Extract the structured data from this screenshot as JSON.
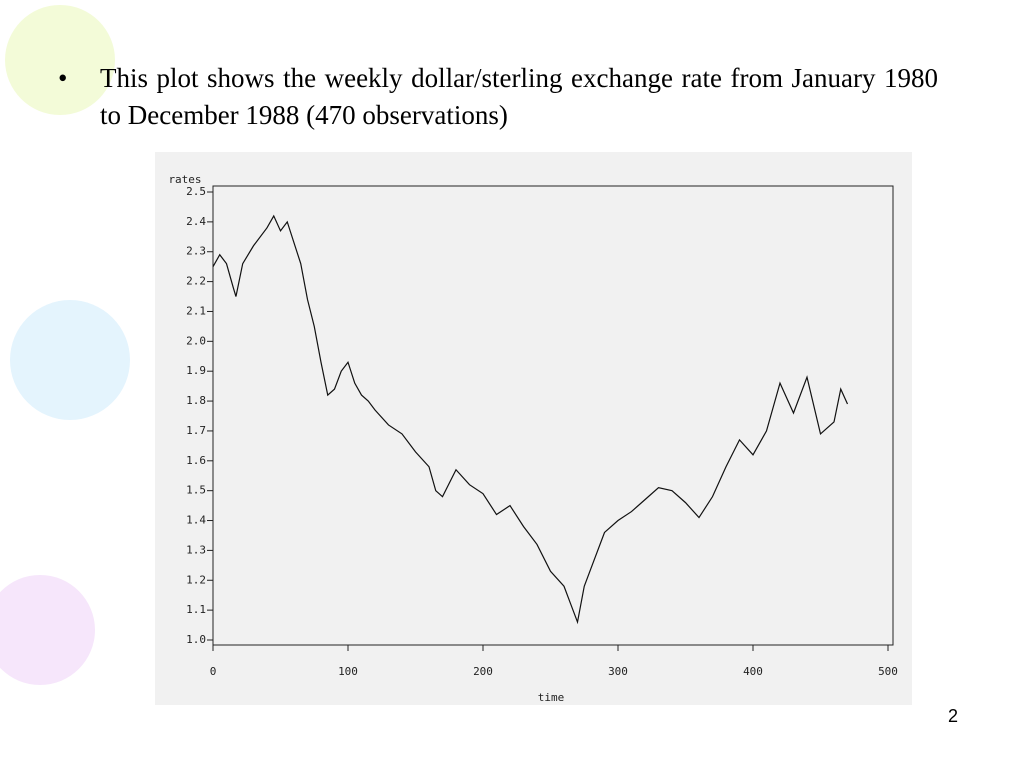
{
  "bullet": "This plot shows the weekly dollar/sterling exchange rate from January 1980 to December 1988 (470 observations)",
  "page_number": "2",
  "chart_data": {
    "type": "line",
    "ylabel": "rates",
    "xlabel": "time",
    "color": "#111111",
    "x": [
      0,
      5,
      10,
      15,
      17,
      22,
      30,
      40,
      45,
      50,
      55,
      60,
      65,
      70,
      75,
      80,
      85,
      90,
      95,
      100,
      105,
      110,
      115,
      120,
      130,
      140,
      150,
      160,
      165,
      170,
      180,
      190,
      200,
      210,
      220,
      230,
      240,
      250,
      260,
      265,
      270,
      275,
      280,
      290,
      300,
      310,
      320,
      330,
      340,
      350,
      360,
      370,
      380,
      390,
      400,
      410,
      420,
      430,
      440,
      450,
      460,
      465,
      470
    ],
    "series": [
      {
        "name": "rates",
        "color": "#111111",
        "values": [
          2.25,
          2.29,
          2.26,
          2.18,
          2.15,
          2.26,
          2.32,
          2.38,
          2.42,
          2.37,
          2.4,
          2.33,
          2.26,
          2.14,
          2.05,
          1.93,
          1.82,
          1.84,
          1.9,
          1.93,
          1.86,
          1.82,
          1.8,
          1.77,
          1.72,
          1.69,
          1.63,
          1.58,
          1.5,
          1.48,
          1.57,
          1.52,
          1.49,
          1.42,
          1.45,
          1.38,
          1.32,
          1.23,
          1.18,
          1.12,
          1.06,
          1.18,
          1.24,
          1.36,
          1.4,
          1.43,
          1.47,
          1.51,
          1.5,
          1.46,
          1.41,
          1.48,
          1.58,
          1.67,
          1.62,
          1.7,
          1.86,
          1.76,
          1.88,
          1.69,
          1.73,
          1.84,
          1.79
        ]
      }
    ],
    "xlim": [
      0,
      500
    ],
    "xticks": [
      0,
      100,
      200,
      300,
      400,
      500
    ],
    "ylim": [
      1.0,
      2.5
    ],
    "yticks": [
      {
        "value": 1.0,
        "label": "1.0"
      },
      1.1,
      1.2,
      1.3,
      1.4,
      1.5,
      1.6,
      1.7,
      1.8,
      1.9,
      {
        "value": 2.0,
        "label": "2.0"
      },
      2.1,
      2.2,
      2.3,
      2.4,
      2.5
    ]
  }
}
